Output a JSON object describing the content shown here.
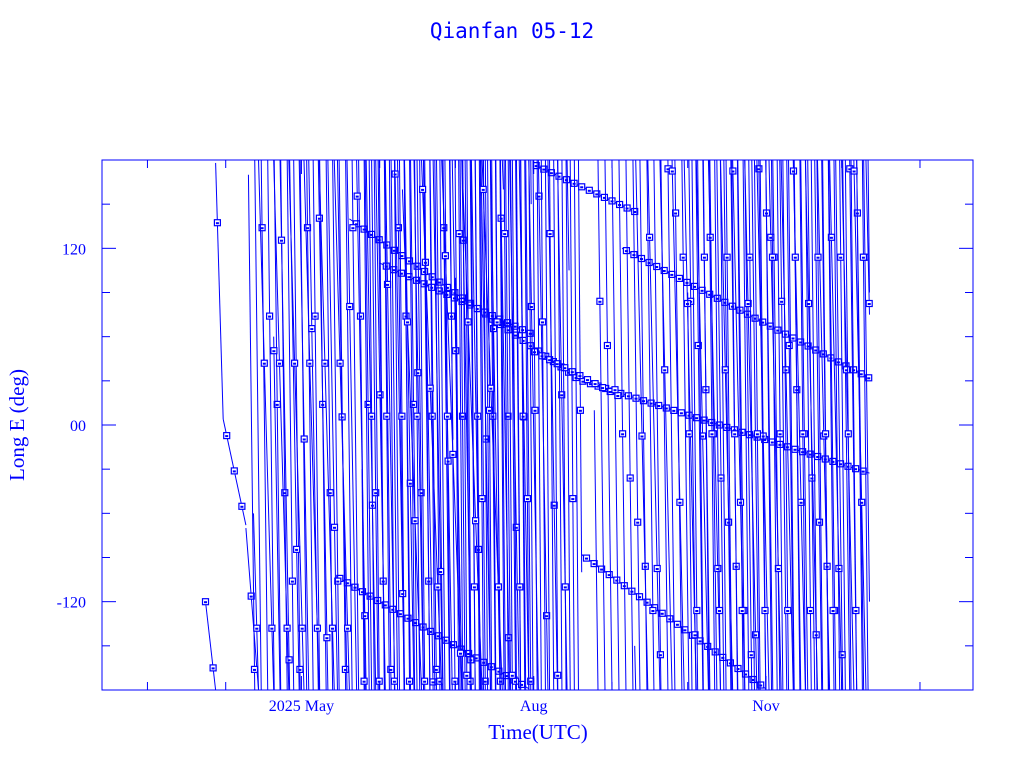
{
  "chart_data": {
    "type": "line",
    "title": "Qianfan 05-12",
    "xlabel": "Time(UTC)",
    "ylabel": "Long E (deg)",
    "xlim": [
      "2025-02-11",
      "2026-01-22"
    ],
    "ylim": [
      -180,
      180
    ],
    "x_tick_labels": [
      {
        "date": "2025-05-01",
        "label": "2025 May"
      },
      {
        "date": "2025-08-01",
        "label": "Aug"
      },
      {
        "date": "2025-11-01",
        "label": "Nov"
      }
    ],
    "x_minor_ticks": [
      "2025-03-01",
      "2025-04-01",
      "2025-05-01",
      "2025-06-01",
      "2025-07-01",
      "2025-08-01",
      "2025-09-01",
      "2025-10-01",
      "2025-11-01",
      "2025-12-01",
      "2026-01-01"
    ],
    "y_tick_labels": [
      {
        "value": 120,
        "label": "120"
      },
      {
        "value": 0,
        "label": "00"
      },
      {
        "value": -120,
        "label": "-120"
      }
    ],
    "y_minor_step": 30,
    "grid": false,
    "color": "#0000ff",
    "marker": "square",
    "marker_interval_days": 3,
    "tracks": [
      {
        "start": "2025-03-24",
        "end": "2025-03-28",
        "lon0": -120,
        "drift": -15
      },
      {
        "start": "2025-03-28",
        "end": "2025-03-31",
        "lon0": 178,
        "drift": -58
      },
      {
        "start": "2025-03-31",
        "end": "2025-04-09",
        "lon0": 4,
        "drift": -8
      },
      {
        "start": "2025-04-09",
        "end": "2025-04-14",
        "lon0": -70,
        "drift": -22
      },
      {
        "start": "2025-05-20",
        "end": "2025-08-20",
        "lon0": 140,
        "drift": -1.2
      },
      {
        "start": "2025-08-20",
        "end": "2025-12-12",
        "lon0": 30,
        "drift": -0.55
      },
      {
        "start": "2025-05-15",
        "end": "2025-07-30",
        "lon0": -103,
        "drift": -1.0
      },
      {
        "start": "2025-08-20",
        "end": "2025-11-01",
        "lon0": -88,
        "drift": -1.25
      },
      {
        "start": "2025-06-01",
        "end": "2025-08-01",
        "lon0": 110,
        "drift": -0.8
      },
      {
        "start": "2025-08-01",
        "end": "2025-09-05",
        "lon0": 50,
        "drift": -0.9
      },
      {
        "start": "2025-08-01",
        "end": "2025-09-10",
        "lon0": 177,
        "drift": -0.8
      },
      {
        "start": "2025-09-05",
        "end": "2025-12-12",
        "lon0": 120,
        "drift": -0.9
      },
      {
        "start": "2025-04-10",
        "end": "2025-06-30",
        "lon0": 170,
        "drift": -140
      },
      {
        "start": "2025-04-20",
        "end": "2025-08-15",
        "lon0": 60,
        "drift": -95
      },
      {
        "start": "2025-05-25",
        "end": "2025-07-31",
        "lon0": -30,
        "drift": -180
      },
      {
        "start": "2025-07-01",
        "end": "2025-08-20",
        "lon0": 100,
        "drift": -220
      },
      {
        "start": "2025-08-25",
        "end": "2025-12-12",
        "lon0": 10,
        "drift": -130
      },
      {
        "start": "2025-09-10",
        "end": "2025-12-12",
        "lon0": -150,
        "drift": -75
      },
      {
        "start": "2025-10-01",
        "end": "2025-12-12",
        "lon0": 90,
        "drift": -160
      },
      {
        "start": "2025-04-12",
        "end": "2025-05-20",
        "lon0": -60,
        "drift": -60
      },
      {
        "start": "2025-06-10",
        "end": "2025-07-20",
        "lon0": 160,
        "drift": -45
      }
    ]
  }
}
